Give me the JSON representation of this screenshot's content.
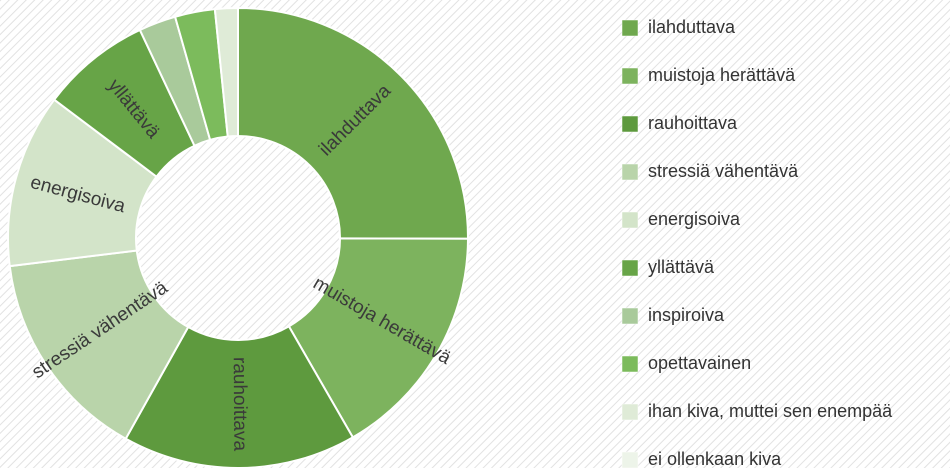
{
  "chart_data": {
    "type": "donut",
    "categories": [
      "ilahduttava",
      "muistoja herättävä",
      "rauhoittava",
      "stressiä vähentävä",
      "energisoiva",
      "yllättävä",
      "inspiroiva",
      "opettavainen",
      "ihan kiva, muttei sen enempää",
      "ei ollenkaan kiva"
    ],
    "values": [
      25,
      16.6,
      16.4,
      14.9,
      12.2,
      7.7,
      2.6,
      2.8,
      1.6,
      0
    ],
    "colors": [
      "#6fa84e",
      "#7db35e",
      "#5e9a3e",
      "#b9d4aa",
      "#d3e4c9",
      "#67a447",
      "#a9ca9b",
      "#7cbb5c",
      "#dfebd7",
      "#edf4e9"
    ],
    "legend": "right"
  }
}
